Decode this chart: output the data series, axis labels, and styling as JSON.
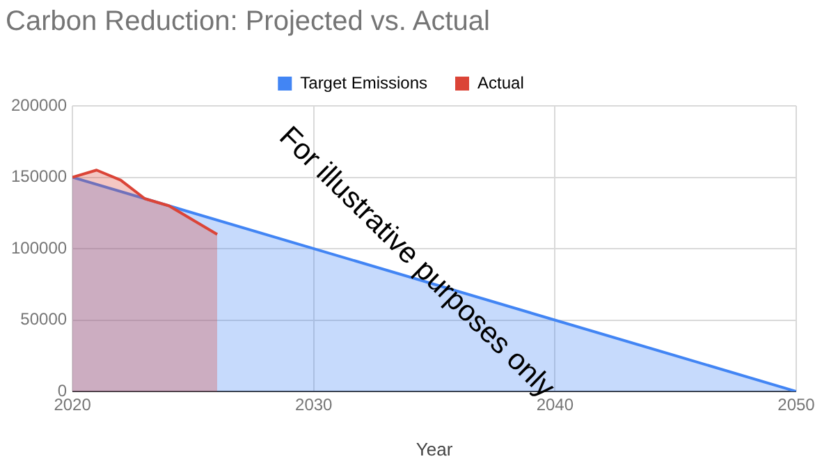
{
  "chart_data": {
    "type": "area",
    "title": "Carbon Reduction: Projected vs. Actual",
    "xlabel": "Year",
    "annotations": [
      "For illustrative purposes only"
    ],
    "series": [
      {
        "name": "Target Emissions",
        "color": "#4285f4",
        "x": [
          2020,
          2050
        ],
        "values": [
          150000,
          0
        ]
      },
      {
        "name": "Actual",
        "color": "#db4437",
        "x": [
          2020,
          2021,
          2022,
          2023,
          2024,
          2025,
          2026
        ],
        "values": [
          150000,
          155000,
          148000,
          135000,
          130000,
          120000,
          110000
        ]
      }
    ],
    "xlim": [
      2020,
      2050
    ],
    "xticks": [
      2020,
      2030,
      2040,
      2050
    ],
    "ylim": [
      0,
      200000
    ],
    "yticks": [
      0,
      50000,
      100000,
      150000,
      200000
    ],
    "grid": true,
    "legend": "top"
  }
}
